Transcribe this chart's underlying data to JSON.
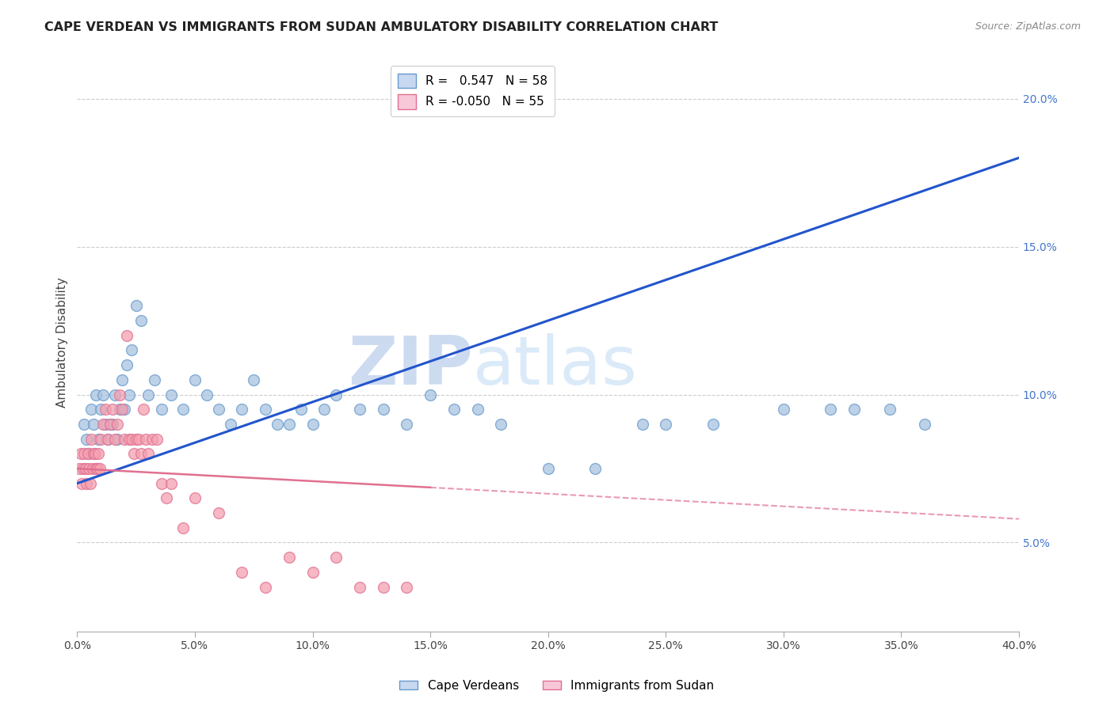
{
  "title": "CAPE VERDEAN VS IMMIGRANTS FROM SUDAN AMBULATORY DISABILITY CORRELATION CHART",
  "source": "Source: ZipAtlas.com",
  "xlabel_vals": [
    0.0,
    5.0,
    10.0,
    15.0,
    20.0,
    25.0,
    30.0,
    35.0,
    40.0
  ],
  "ylabel": "Ambulatory Disability",
  "ylabel_right_vals": [
    5.0,
    10.0,
    15.0,
    20.0
  ],
  "xmin": 0.0,
  "xmax": 40.0,
  "ymin": 2.0,
  "ymax": 21.5,
  "blue_r": 0.547,
  "blue_n": 58,
  "pink_r": -0.05,
  "pink_n": 55,
  "blue_color": "#A8C4E0",
  "pink_color": "#F4A0B0",
  "blue_edge_color": "#6699CC",
  "pink_edge_color": "#E07090",
  "blue_line_color": "#2255CC",
  "pink_line_color": "#E07090",
  "watermark_zip": "ZIP",
  "watermark_atlas": "atlas",
  "legend_label_blue": "Cape Verdeans",
  "legend_label_pink": "Immigrants from Sudan",
  "blue_line_x0": 0.0,
  "blue_line_y0": 7.0,
  "blue_line_x1": 40.0,
  "blue_line_y1": 18.0,
  "pink_line_x0": 0.0,
  "pink_line_y0": 7.5,
  "pink_line_x1": 40.0,
  "pink_line_y1": 5.8,
  "blue_scatter_x": [
    0.3,
    0.4,
    0.5,
    0.6,
    0.7,
    0.8,
    0.9,
    1.0,
    1.1,
    1.2,
    1.3,
    1.4,
    1.5,
    1.6,
    1.7,
    1.8,
    1.9,
    2.0,
    2.1,
    2.2,
    2.3,
    2.5,
    2.7,
    3.0,
    3.3,
    3.6,
    4.0,
    4.5,
    5.0,
    5.5,
    6.0,
    6.5,
    7.0,
    7.5,
    8.0,
    8.5,
    9.0,
    9.5,
    10.0,
    10.5,
    11.0,
    12.0,
    13.0,
    14.0,
    15.0,
    16.0,
    17.0,
    18.0,
    20.0,
    22.0,
    24.0,
    25.0,
    27.0,
    30.0,
    32.0,
    33.0,
    34.5,
    36.0
  ],
  "blue_scatter_y": [
    9.0,
    8.5,
    8.0,
    9.5,
    9.0,
    10.0,
    8.5,
    9.5,
    10.0,
    9.0,
    8.5,
    9.0,
    9.0,
    10.0,
    8.5,
    9.5,
    10.5,
    9.5,
    11.0,
    10.0,
    11.5,
    13.0,
    12.5,
    10.0,
    10.5,
    9.5,
    10.0,
    9.5,
    10.5,
    10.0,
    9.5,
    9.0,
    9.5,
    10.5,
    9.5,
    9.0,
    9.0,
    9.5,
    9.0,
    9.5,
    10.0,
    9.5,
    9.5,
    9.0,
    10.0,
    9.5,
    9.5,
    9.0,
    7.5,
    7.5,
    9.0,
    9.0,
    9.0,
    9.5,
    9.5,
    9.5,
    9.5,
    9.0
  ],
  "pink_scatter_x": [
    0.1,
    0.15,
    0.2,
    0.25,
    0.3,
    0.35,
    0.4,
    0.45,
    0.5,
    0.55,
    0.6,
    0.65,
    0.7,
    0.75,
    0.8,
    0.85,
    0.9,
    0.95,
    1.0,
    1.1,
    1.2,
    1.3,
    1.4,
    1.5,
    1.6,
    1.7,
    1.8,
    1.9,
    2.0,
    2.1,
    2.2,
    2.3,
    2.4,
    2.5,
    2.6,
    2.7,
    2.8,
    2.9,
    3.0,
    3.2,
    3.4,
    3.6,
    3.8,
    4.0,
    4.5,
    5.0,
    6.0,
    7.0,
    8.0,
    9.0,
    10.0,
    11.0,
    12.0,
    13.0,
    14.0
  ],
  "pink_scatter_y": [
    7.5,
    8.0,
    7.0,
    7.5,
    8.0,
    7.5,
    7.0,
    8.0,
    7.5,
    7.0,
    8.5,
    7.5,
    8.0,
    8.0,
    7.5,
    7.5,
    8.0,
    7.5,
    8.5,
    9.0,
    9.5,
    8.5,
    9.0,
    9.5,
    8.5,
    9.0,
    10.0,
    9.5,
    8.5,
    12.0,
    8.5,
    8.5,
    8.0,
    8.5,
    8.5,
    8.0,
    9.5,
    8.5,
    8.0,
    8.5,
    8.5,
    7.0,
    6.5,
    7.0,
    5.5,
    6.5,
    6.0,
    4.0,
    3.5,
    4.5,
    4.0,
    4.5,
    3.5,
    3.5,
    3.5
  ]
}
